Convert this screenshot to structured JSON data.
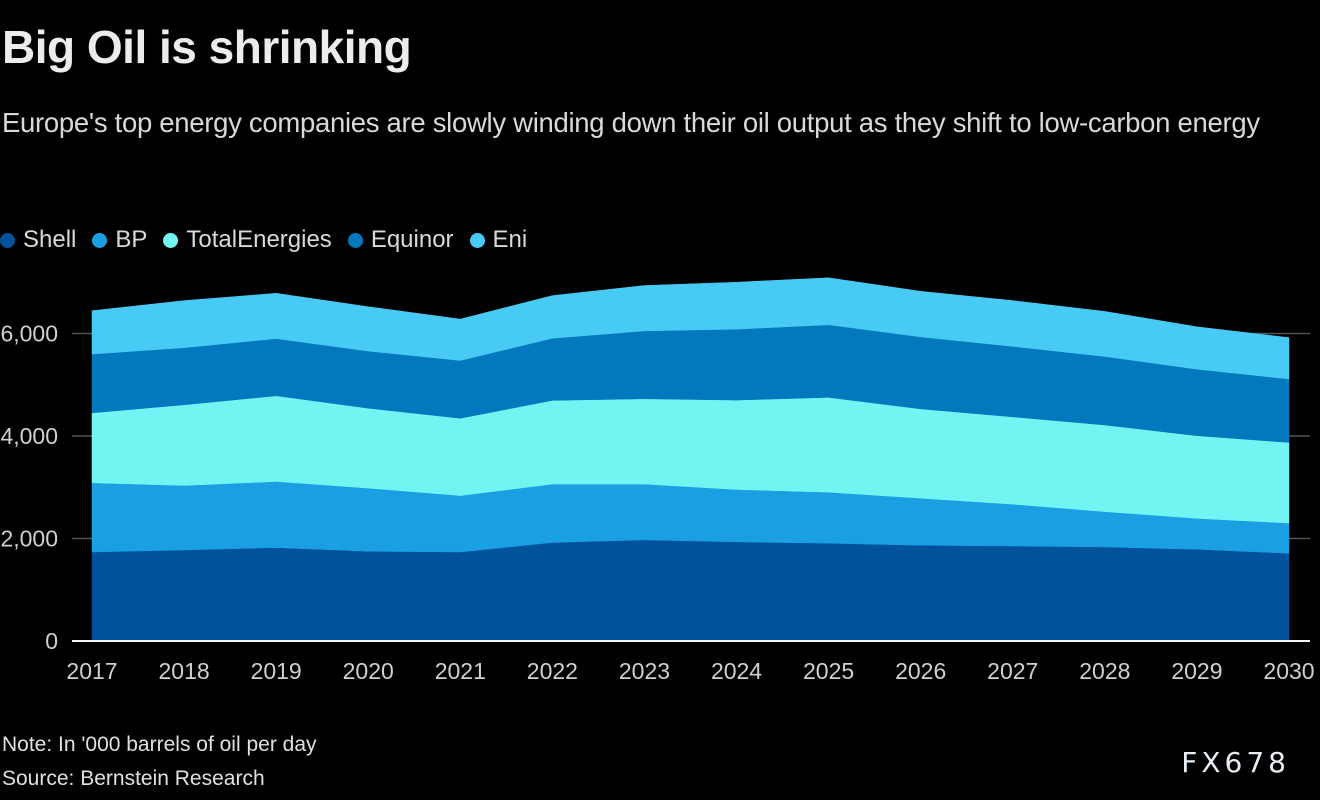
{
  "header": {
    "title": "Big Oil is shrinking",
    "subtitle": "Europe's top energy companies are slowly winding down their oil output as they shift to low-carbon energy"
  },
  "footer": {
    "note": "Note: In '000 barrels of oil per day",
    "source": "Source: Bernstein Research",
    "logo": "FX678"
  },
  "chart_data": {
    "type": "area",
    "stacked": true,
    "title": "Big Oil is shrinking",
    "subtitle": "Europe's top energy companies are slowly winding down their oil output as they shift to low-carbon energy",
    "xlabel": "",
    "ylabel": "'000 barrels of oil per day",
    "x": [
      "2017",
      "2018",
      "2019",
      "2020",
      "2021",
      "2022",
      "2023",
      "2024",
      "2025",
      "2026",
      "2027",
      "2028",
      "2029",
      "2030"
    ],
    "ylim": [
      0,
      7000
    ],
    "yticks": [
      0,
      2000,
      4000,
      6000
    ],
    "ytick_labels": [
      "0",
      "2,000",
      "4,000",
      "6,000"
    ],
    "grid": true,
    "legend_position": "top-left",
    "series": [
      {
        "name": "Shell",
        "color": "#00539b",
        "values": [
          1737,
          1776,
          1823,
          1750,
          1737,
          1921,
          1973,
          1933,
          1908,
          1868,
          1854,
          1835,
          1790,
          1711
        ]
      },
      {
        "name": "BP",
        "color": "#1a9fe2",
        "values": [
          1350,
          1259,
          1290,
          1233,
          1101,
          1141,
          1089,
          1023,
          996,
          919,
          815,
          689,
          603,
          590
        ]
      },
      {
        "name": "TotalEnergies",
        "color": "#72f5f2",
        "values": [
          1363,
          1573,
          1672,
          1560,
          1508,
          1632,
          1664,
          1744,
          1849,
          1742,
          1703,
          1691,
          1613,
          1573
        ]
      },
      {
        "name": "Equinor",
        "color": "#0279bd",
        "values": [
          1149,
          1115,
          1115,
          1114,
          1127,
          1212,
          1325,
          1383,
          1416,
          1404,
          1377,
          1337,
          1298,
          1239
        ]
      },
      {
        "name": "Eni",
        "color": "#47cbf4",
        "values": [
          845,
          918,
          885,
          866,
          807,
          834,
          885,
          918,
          917,
          891,
          892,
          879,
          826,
          807
        ]
      }
    ]
  }
}
